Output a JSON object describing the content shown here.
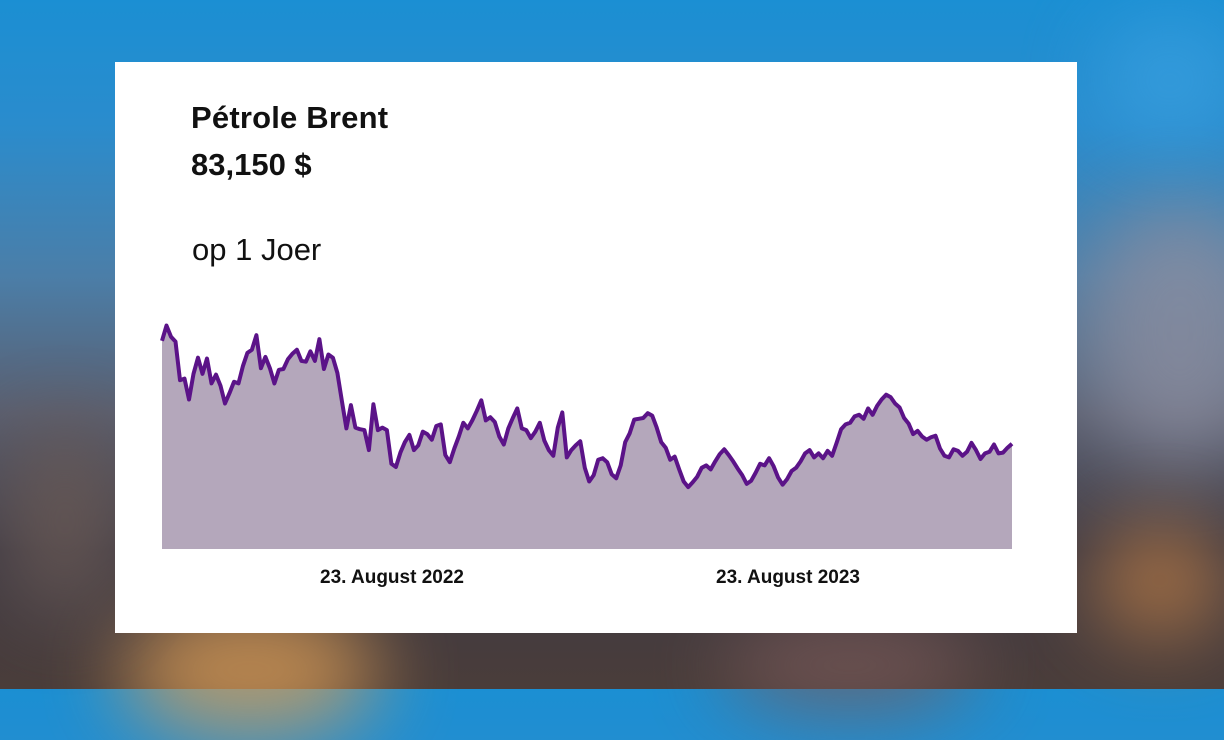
{
  "card": {
    "title": "Pétrole Brent",
    "price": "83,150 $",
    "period": "op 1 Joer"
  },
  "colors": {
    "line": "#5b1388",
    "area": "#b4a7bb",
    "text": "#111111",
    "card": "#ffffff"
  },
  "chart_data": {
    "type": "area",
    "x_tick_labels": [
      "23. August 2022",
      "23. August 2023"
    ],
    "ylim": [
      70,
      97
    ],
    "grid": false,
    "legend": "none",
    "series": [
      {
        "values": [
          95.9,
          97.8,
          96.4,
          95.8,
          91.0,
          91.2,
          88.6,
          91.8,
          93.8,
          91.8,
          93.7,
          90.6,
          91.7,
          90.3,
          88.1,
          89.4,
          90.8,
          90.6,
          92.8,
          94.4,
          94.8,
          96.6,
          92.5,
          93.9,
          92.5,
          90.6,
          92.3,
          92.4,
          93.6,
          94.3,
          94.8,
          93.4,
          93.3,
          94.6,
          93.4,
          96.1,
          92.4,
          94.2,
          93.8,
          91.9,
          88.4,
          85.0,
          87.9,
          85.1,
          84.9,
          84.8,
          82.3,
          88.0,
          84.8,
          85.1,
          84.8,
          80.6,
          80.2,
          82.0,
          83.3,
          84.2,
          82.3,
          82.9,
          84.6,
          84.3,
          83.6,
          85.3,
          85.5,
          81.7,
          80.8,
          82.5,
          84.0,
          85.7,
          85.0,
          86.0,
          87.2,
          88.5,
          86.0,
          86.4,
          85.8,
          84.0,
          83.0,
          85.0,
          86.3,
          87.5,
          85.0,
          84.8,
          83.8,
          84.6,
          85.7,
          83.5,
          82.3,
          81.6,
          85.1,
          87.0,
          81.4,
          82.3,
          82.9,
          83.4,
          80.1,
          78.4,
          79.2,
          81.1,
          81.3,
          80.8,
          79.3,
          78.8,
          80.4,
          83.3,
          84.4,
          86.1,
          86.2,
          86.3,
          86.9,
          86.6,
          85.1,
          83.3,
          82.6,
          81.1,
          81.5,
          79.9,
          78.4,
          77.7,
          78.3,
          79.0,
          80.1,
          80.4,
          79.9,
          80.9,
          81.8,
          82.4,
          81.7,
          80.9,
          80.0,
          79.2,
          78.1,
          78.5,
          79.5,
          80.6,
          80.4,
          81.3,
          80.3,
          78.9,
          78.0,
          78.7,
          79.7,
          80.1,
          80.9,
          81.9,
          82.3,
          81.4,
          81.9,
          81.3,
          82.2,
          81.6,
          83.2,
          84.9,
          85.5,
          85.7,
          86.5,
          86.7,
          86.2,
          87.5,
          86.7,
          87.8,
          88.6,
          89.2,
          88.9,
          88.1,
          87.6,
          86.3,
          85.6,
          84.3,
          84.7,
          84.0,
          83.6,
          83.9,
          84.1,
          82.5,
          81.6,
          81.4,
          82.4,
          82.2,
          81.6,
          82.1,
          83.2,
          82.3,
          81.2,
          81.9,
          82.1,
          83.0,
          81.9,
          82.0,
          82.6,
          83.1
        ]
      }
    ]
  }
}
